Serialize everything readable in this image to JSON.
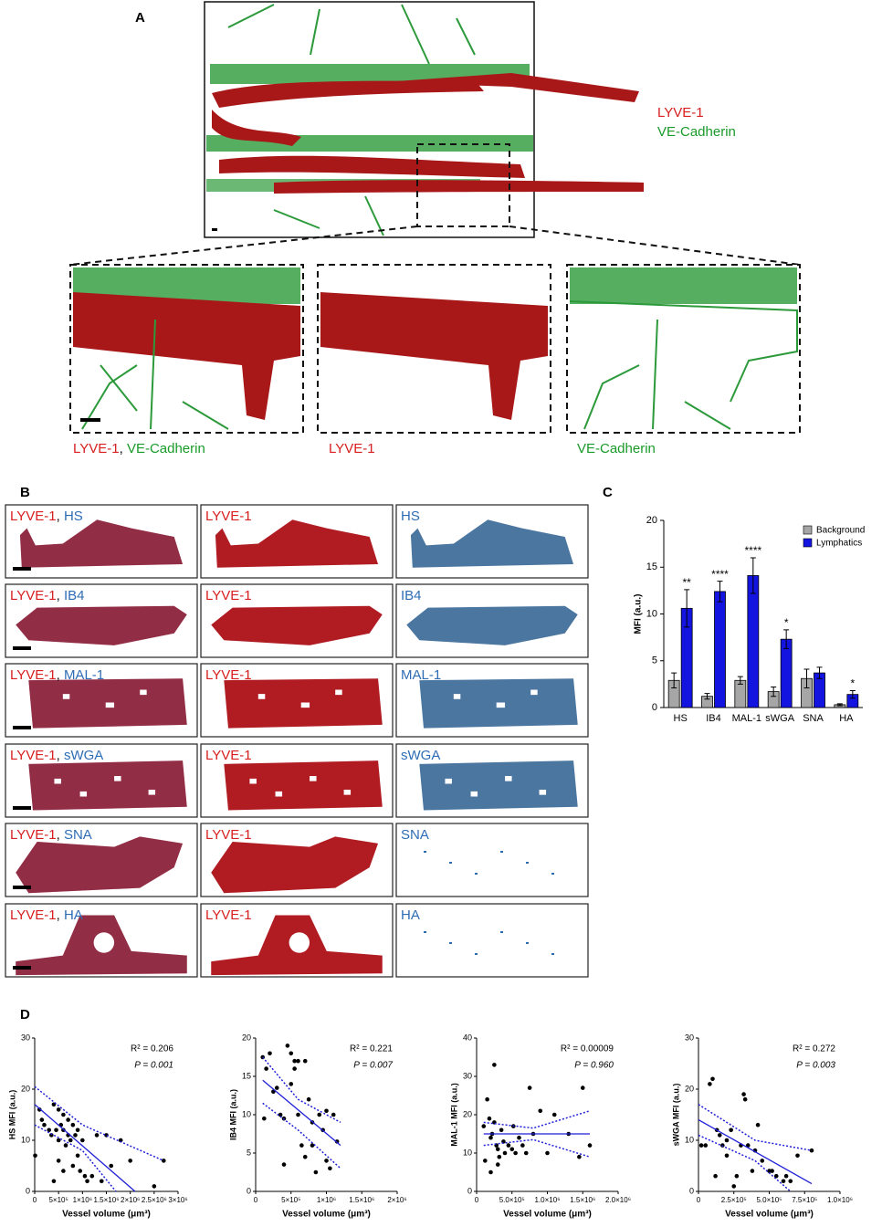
{
  "panel_labels": [
    "A",
    "B",
    "C",
    "D"
  ],
  "separator": ",",
  "panel_a": {
    "markers": [
      "LYVE-1",
      "VE-Cadherin"
    ]
  },
  "panel_b": {
    "lyve": "LYVE-1",
    "stains": [
      "HS",
      "IB4",
      "MAL-1",
      "sWGA",
      "SNA",
      "HA"
    ]
  },
  "chart_data": [
    {
      "type": "bar",
      "ylabel": "MFI (a.u.)",
      "categories": [
        "HS",
        "IB4",
        "MAL-1",
        "sWGA",
        "SNA",
        "HA"
      ],
      "series": [
        {
          "name": "Background",
          "color": "#a6a6a6",
          "values": [
            2.9,
            1.2,
            2.9,
            1.7,
            3.1,
            0.3
          ],
          "errors": [
            0.8,
            0.3,
            0.4,
            0.5,
            1.0,
            0.1
          ]
        },
        {
          "name": "Lymphatics",
          "color": "#1414e0",
          "values": [
            10.6,
            12.4,
            14.1,
            7.3,
            3.7,
            1.4
          ],
          "errors": [
            2.0,
            1.1,
            1.9,
            1.0,
            0.6,
            0.4
          ]
        }
      ],
      "annotations": [
        "**",
        "****",
        "****",
        "*",
        null,
        "*"
      ],
      "ylim": [
        0,
        20
      ],
      "yticks": [
        0,
        5,
        10,
        15,
        20
      ],
      "legend": "upper right"
    },
    {
      "type": "scatter",
      "ylabel": "HS MFI (a.u.)",
      "xlabel": "Vessel volume (μm³)",
      "color": "#000000",
      "fit_color": "#1f1fd8",
      "annotations": [
        "R² = 0.206",
        "P = 0.001"
      ],
      "x": [
        10000,
        100000,
        150000,
        200000,
        300000,
        350000,
        400000,
        450000,
        500000,
        500000,
        550000,
        600000,
        600000,
        650000,
        700000,
        700000,
        750000,
        800000,
        800000,
        850000,
        900000,
        900000,
        950000,
        1000000,
        1050000,
        1100000,
        1200000,
        1300000,
        1400000,
        1500000,
        1600000,
        1800000,
        2000000,
        2500000,
        2700000,
        400000,
        500000,
        600000
      ],
      "y": [
        7,
        16,
        14,
        13,
        12,
        11,
        17,
        12,
        10,
        16,
        13,
        12,
        15,
        9,
        11,
        14,
        10,
        13,
        5,
        11,
        12,
        7,
        4,
        10,
        3,
        2,
        3,
        11,
        2,
        11,
        5,
        10,
        6,
        1,
        6,
        2,
        6,
        4
      ],
      "fit": {
        "x": [
          0,
          2100000
        ],
        "y": [
          17,
          0
        ]
      },
      "ci_upper": {
        "x": [
          0,
          1000000,
          2700000
        ],
        "y": [
          20.5,
          13,
          6
        ]
      },
      "ci_lower": {
        "x": [
          0,
          1000000,
          1700000
        ],
        "y": [
          13,
          8,
          0
        ]
      },
      "xlim": [
        0,
        3000000
      ],
      "ylim": [
        0,
        30
      ],
      "xticks": [
        0,
        {
          "value": 500000,
          "label": "5×10⁵"
        },
        {
          "value": 1000000,
          "label": "1×10⁶"
        },
        {
          "value": 1500000,
          "label": "1.5×10⁶"
        },
        {
          "value": 2000000,
          "label": "2×10⁶"
        },
        {
          "value": 2500000,
          "label": "2.5×10⁶"
        },
        {
          "value": 3000000,
          "label": "3×10⁶"
        }
      ],
      "yticks": [
        0,
        10,
        20,
        30
      ]
    },
    {
      "type": "scatter",
      "ylabel": "IB4 MFI (a.u.)",
      "xlabel": "Vessel volume (μm³)",
      "color": "#000000",
      "fit_color": "#1f1fd8",
      "annotations": [
        "R² = 0.221",
        "P = 0.007"
      ],
      "x": [
        100000,
        120000,
        150000,
        200000,
        250000,
        300000,
        350000,
        400000,
        400000,
        450000,
        500000,
        500000,
        550000,
        550000,
        600000,
        600000,
        650000,
        700000,
        700000,
        750000,
        800000,
        800000,
        850000,
        900000,
        950000,
        1000000,
        1050000,
        1100000,
        1150000,
        1000000
      ],
      "y": [
        17.5,
        9.5,
        16,
        18,
        13,
        13.5,
        10,
        3.5,
        9.5,
        19,
        18,
        14,
        17,
        16,
        17,
        10,
        6,
        4.5,
        17,
        12,
        6,
        9,
        2.5,
        10,
        8,
        4,
        3,
        10,
        6.5,
        10.5
      ],
      "fit": {
        "x": [
          100000,
          1200000
        ],
        "y": [
          14.5,
          6
        ]
      },
      "ci_upper": {
        "x": [
          100000,
          600000,
          1200000
        ],
        "y": [
          17.5,
          12,
          9
        ]
      },
      "ci_lower": {
        "x": [
          100000,
          600000,
          1200000
        ],
        "y": [
          11.5,
          8,
          3
        ]
      },
      "xlim": [
        0,
        2000000
      ],
      "ylim": [
        0,
        20
      ],
      "xticks": [
        0,
        {
          "value": 500000,
          "label": "5×10⁵"
        },
        {
          "value": 1000000,
          "label": "1×10⁶"
        },
        {
          "value": 1500000,
          "label": "1.5×10⁶"
        },
        {
          "value": 2000000,
          "label": "2×10⁶"
        }
      ],
      "yticks": [
        0,
        5,
        10,
        15,
        20
      ]
    },
    {
      "type": "scatter",
      "ylabel": "MAL-1 MFI (a.u.)",
      "xlabel": "Vessel volume (μm³)",
      "color": "#000000",
      "fit_color": "#1f1fd8",
      "annotations": [
        "R² = 0.00009",
        "P = 0.960"
      ],
      "x": [
        100000,
        120000,
        150000,
        180000,
        200000,
        220000,
        250000,
        280000,
        300000,
        320000,
        350000,
        380000,
        400000,
        450000,
        500000,
        520000,
        550000,
        600000,
        650000,
        700000,
        750000,
        800000,
        900000,
        1000000,
        1100000,
        1300000,
        1450000,
        1500000,
        1600000,
        200000,
        250000,
        300000
      ],
      "y": [
        17,
        8,
        24,
        19,
        5,
        15,
        33,
        12,
        11,
        9,
        16,
        13,
        10,
        12,
        11,
        17,
        10,
        14,
        12,
        10,
        27,
        15,
        21,
        10,
        20,
        15,
        9,
        27,
        12,
        14,
        18,
        7
      ],
      "fit": {
        "x": [
          100000,
          1600000
        ],
        "y": [
          15,
          15
        ]
      },
      "ci_upper": {
        "x": [
          100000,
          800000,
          1600000
        ],
        "y": [
          18,
          16.5,
          21
        ]
      },
      "ci_lower": {
        "x": [
          100000,
          800000,
          1600000
        ],
        "y": [
          12,
          13.5,
          9
        ]
      },
      "xlim": [
        0,
        2000000
      ],
      "ylim": [
        0,
        40
      ],
      "xticks": [
        0,
        {
          "value": 500000,
          "label": "5.0×10⁵"
        },
        {
          "value": 1000000,
          "label": "1.0×10⁶"
        },
        {
          "value": 1500000,
          "label": "1.5×10⁶"
        },
        {
          "value": 2000000,
          "label": "2.0×10⁶"
        }
      ],
      "yticks": [
        0,
        10,
        20,
        30,
        40
      ]
    },
    {
      "type": "scatter",
      "ylabel": "sWGA MFI (a.u.)",
      "xlabel": "Vessel volume (μm³)",
      "color": "#000000",
      "fit_color": "#1f1fd8",
      "annotations": [
        "R² = 0.272",
        "P = 0.003"
      ],
      "x": [
        20000,
        50000,
        80000,
        100000,
        120000,
        130000,
        150000,
        170000,
        200000,
        200000,
        230000,
        250000,
        270000,
        300000,
        320000,
        330000,
        350000,
        380000,
        400000,
        420000,
        450000,
        500000,
        520000,
        550000,
        600000,
        620000,
        650000,
        700000,
        800000
      ],
      "y": [
        9,
        9,
        21,
        22,
        3,
        12,
        11,
        9,
        7,
        10,
        12,
        1,
        3,
        9,
        19,
        18,
        9,
        4,
        8,
        13,
        6,
        4,
        4,
        3,
        2,
        3,
        2,
        7,
        8
      ],
      "fit": {
        "x": [
          0,
          800000
        ],
        "y": [
          14,
          1.5
        ]
      },
      "ci_upper": {
        "x": [
          0,
          400000,
          800000
        ],
        "y": [
          17,
          10,
          8
        ]
      },
      "ci_lower": {
        "x": [
          0,
          400000,
          650000
        ],
        "y": [
          11,
          6,
          0
        ]
      },
      "xlim": [
        0,
        1000000
      ],
      "ylim": [
        0,
        30
      ],
      "xticks": [
        0,
        {
          "value": 250000,
          "label": "2.5×10⁵"
        },
        {
          "value": 500000,
          "label": "5.0×10⁵"
        },
        {
          "value": 750000,
          "label": "7.5×10⁵"
        },
        {
          "value": 1000000,
          "label": "1.0×10⁶"
        }
      ],
      "yticks": [
        0,
        10,
        20,
        30
      ]
    }
  ]
}
